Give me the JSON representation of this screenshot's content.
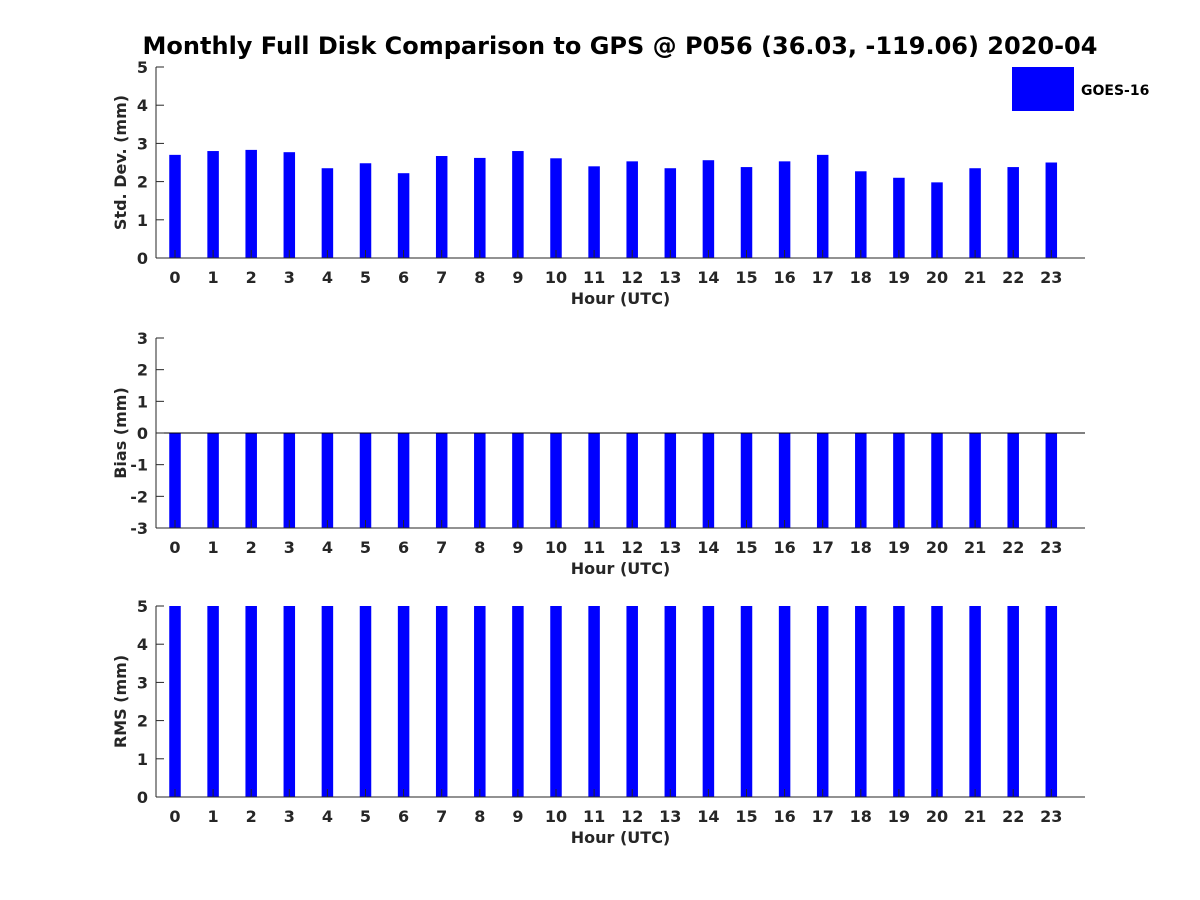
{
  "title": "Monthly Full Disk Comparison to GPS @ P056 (36.03, -119.06) 2020-04",
  "legend": {
    "label": "GOES-16",
    "color": "#0000ff",
    "placement": "top-right"
  },
  "chart_data": [
    {
      "type": "bar",
      "xlabel": "Hour (UTC)",
      "ylabel": "Std. Dev. (mm)",
      "ylim": [
        0,
        5
      ],
      "yticks": [
        "0",
        "1",
        "2",
        "3",
        "4",
        "5"
      ],
      "categories": [
        "0",
        "1",
        "2",
        "3",
        "4",
        "5",
        "6",
        "7",
        "8",
        "9",
        "10",
        "11",
        "12",
        "13",
        "14",
        "15",
        "16",
        "17",
        "18",
        "19",
        "20",
        "21",
        "22",
        "23"
      ],
      "series": [
        {
          "name": "GOES-16",
          "values": [
            2.7,
            2.8,
            2.83,
            2.77,
            2.35,
            2.48,
            2.22,
            2.67,
            2.62,
            2.8,
            2.61,
            2.4,
            2.53,
            2.35,
            2.56,
            2.38,
            2.53,
            2.7,
            2.27,
            2.1,
            1.98,
            2.35,
            2.38,
            2.5
          ]
        }
      ]
    },
    {
      "type": "bar",
      "xlabel": "Hour (UTC)",
      "ylabel": "Bias (mm)",
      "ylim": [
        -3,
        3
      ],
      "yticks": [
        "-3",
        "-2",
        "-1",
        "0",
        "1",
        "2",
        "3"
      ],
      "categories": [
        "0",
        "1",
        "2",
        "3",
        "4",
        "5",
        "6",
        "7",
        "8",
        "9",
        "10",
        "11",
        "12",
        "13",
        "14",
        "15",
        "16",
        "17",
        "18",
        "19",
        "20",
        "21",
        "22",
        "23"
      ],
      "series": [
        {
          "name": "GOES-16",
          "values": [
            -3,
            -3,
            -3,
            -3,
            -3,
            -3,
            -3,
            -3,
            -3,
            -3,
            -3,
            -3,
            -3,
            -3,
            -3,
            -3,
            -3,
            -3,
            -3,
            -3,
            -3,
            -3,
            -3,
            -3
          ]
        }
      ]
    },
    {
      "type": "bar",
      "xlabel": "Hour (UTC)",
      "ylabel": "RMS (mm)",
      "ylim": [
        0,
        5
      ],
      "yticks": [
        "0",
        "1",
        "2",
        "3",
        "4",
        "5"
      ],
      "categories": [
        "0",
        "1",
        "2",
        "3",
        "4",
        "5",
        "6",
        "7",
        "8",
        "9",
        "10",
        "11",
        "12",
        "13",
        "14",
        "15",
        "16",
        "17",
        "18",
        "19",
        "20",
        "21",
        "22",
        "23"
      ],
      "series": [
        {
          "name": "GOES-16",
          "values": [
            5,
            5,
            5,
            5,
            5,
            5,
            5,
            5,
            5,
            5,
            5,
            5,
            5,
            5,
            5,
            5,
            5,
            5,
            5,
            5,
            5,
            5,
            5,
            5
          ]
        }
      ]
    }
  ]
}
